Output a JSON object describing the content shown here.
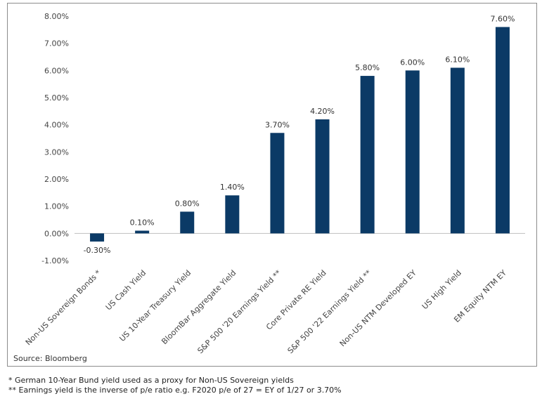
{
  "chart_data": {
    "type": "bar",
    "categories": [
      "Non-US Sovereign Bonds *",
      "US Cash Yield",
      "US 10-Year Treasury Yield",
      "BloomBar Aggregate Yield",
      "S&P 500 '20 Earnings Yield **",
      "Core Private RE Yield",
      "S&P 500 '22 Earnings Yield **",
      "Non-US NTM Developed EY",
      "US High Yield",
      "EM Equity NTM EY"
    ],
    "values": [
      -0.3,
      0.1,
      0.8,
      1.4,
      3.7,
      4.2,
      5.8,
      6.0,
      6.1,
      7.6
    ],
    "data_labels": [
      "-0.30%",
      "0.10%",
      "0.80%",
      "1.40%",
      "3.70%",
      "4.20%",
      "5.80%",
      "6.00%",
      "6.10%",
      "7.60%"
    ],
    "ylim": [
      -1.0,
      8.0
    ],
    "yticks": [
      -1,
      0,
      1,
      2,
      3,
      4,
      5,
      6,
      7,
      8
    ],
    "ytick_labels": [
      "-1.00%",
      "0.00%",
      "1.00%",
      "2.00%",
      "3.00%",
      "4.00%",
      "5.00%",
      "6.00%",
      "7.00%",
      "8.00%"
    ],
    "bar_color": "#0b3a66",
    "grid": false,
    "legend": "none"
  },
  "source": "Source:  Bloomberg",
  "footnotes": [
    "* German 10-Year Bund yield used as a proxy for Non-US Sovereign yields",
    "** Earnings yield is the inverse of p/e ratio e.g. F2020 p/e of 27 = EY of 1/27 or 3.70%"
  ]
}
